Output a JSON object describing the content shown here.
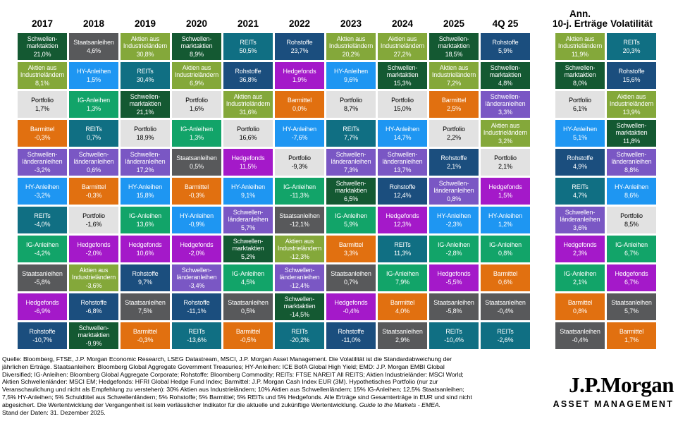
{
  "brand": {
    "name": "J.P.Morgan",
    "sub": "ASSET MANAGEMENT"
  },
  "chart_data": {
    "type": "table",
    "title": "Anlageklassenrenditen (returns quilt), ranked best-to-worst per column",
    "legend_position": "none",
    "assets": {
      "em_eq": {
        "label": "Schwellen-\nmarktaktien",
        "color": "#145932",
        "text": "#ffffff"
      },
      "dm_eq": {
        "label": "Aktien aus\nIndustrieländern",
        "color": "#84a83a",
        "text": "#ffffff"
      },
      "pf": {
        "label": "Portfolio",
        "color": "#e2e2e2",
        "text": "#000000"
      },
      "cash": {
        "label": "Barmittel",
        "color": "#e17010",
        "text": "#ffffff"
      },
      "emd": {
        "label": "Schwellen-\nländeranleihen",
        "color": "#7a57c4",
        "text": "#ffffff"
      },
      "hy": {
        "label": "HY-Anleihen",
        "color": "#1e96f2",
        "text": "#ffffff"
      },
      "reit": {
        "label": "REITs",
        "color": "#106f83",
        "text": "#ffffff"
      },
      "ig": {
        "label": "IG-Anleihen",
        "color": "#12a469",
        "text": "#ffffff"
      },
      "govt": {
        "label": "Staatsanleihen",
        "color": "#58595b",
        "text": "#ffffff"
      },
      "hf": {
        "label": "Hedgefonds",
        "color": "#a419c9",
        "text": "#ffffff"
      },
      "cmd": {
        "label": "Rohstoffe",
        "color": "#1b4e7e",
        "text": "#ffffff"
      }
    },
    "columns": [
      {
        "header": "2017",
        "cells": [
          [
            "em_eq",
            "21,0%"
          ],
          [
            "dm_eq",
            "8,1%"
          ],
          [
            "pf",
            "1,7%"
          ],
          [
            "cash",
            "-0,3%"
          ],
          [
            "emd",
            "-3,2%"
          ],
          [
            "hy",
            "-3,2%"
          ],
          [
            "reit",
            "-4,0%"
          ],
          [
            "ig",
            "-4,2%"
          ],
          [
            "govt",
            "-5,8%"
          ],
          [
            "hf",
            "-6,9%"
          ],
          [
            "cmd",
            "-10,7%"
          ]
        ]
      },
      {
        "header": "2018",
        "cells": [
          [
            "govt",
            "4,6%"
          ],
          [
            "hy",
            "1,5%"
          ],
          [
            "ig",
            "1,3%"
          ],
          [
            "reit",
            "0,7%"
          ],
          [
            "emd",
            "0,6%"
          ],
          [
            "cash",
            "-0,3%"
          ],
          [
            "pf",
            "-1,6%"
          ],
          [
            "hf",
            "-2,0%"
          ],
          [
            "dm_eq",
            "-3,6%"
          ],
          [
            "cmd",
            "-6,8%"
          ],
          [
            "em_eq",
            "-9,9%"
          ]
        ]
      },
      {
        "header": "2019",
        "cells": [
          [
            "dm_eq",
            "30,8%"
          ],
          [
            "reit",
            "30,4%"
          ],
          [
            "em_eq",
            "21,1%"
          ],
          [
            "pf",
            "18,9%"
          ],
          [
            "emd",
            "17,2%"
          ],
          [
            "hy",
            "15,8%"
          ],
          [
            "ig",
            "13,6%"
          ],
          [
            "hf",
            "10,6%"
          ],
          [
            "cmd",
            "9,7%"
          ],
          [
            "govt",
            "7,5%"
          ],
          [
            "cash",
            "-0,3%"
          ]
        ]
      },
      {
        "header": "2020",
        "cells": [
          [
            "em_eq",
            "8,9%"
          ],
          [
            "dm_eq",
            "6,9%"
          ],
          [
            "pf",
            "1,6%"
          ],
          [
            "ig",
            "1,3%"
          ],
          [
            "govt",
            "0,5%"
          ],
          [
            "cash",
            "-0,3%"
          ],
          [
            "hy",
            "-0,9%"
          ],
          [
            "hf",
            "-2,0%"
          ],
          [
            "emd",
            "-3,4%"
          ],
          [
            "cmd",
            "-11,1%"
          ],
          [
            "reit",
            "-13,6%"
          ]
        ]
      },
      {
        "header": "2021",
        "cells": [
          [
            "reit",
            "50,5%"
          ],
          [
            "cmd",
            "36,8%"
          ],
          [
            "dm_eq",
            "31,6%"
          ],
          [
            "pf",
            "16,6%"
          ],
          [
            "hf",
            "11,5%"
          ],
          [
            "hy",
            "9,1%"
          ],
          [
            "emd",
            "5,7%"
          ],
          [
            "em_eq",
            "5,2%"
          ],
          [
            "ig",
            "4,5%"
          ],
          [
            "govt",
            "0,5%"
          ],
          [
            "cash",
            "-0,5%"
          ]
        ]
      },
      {
        "header": "2022",
        "cells": [
          [
            "cmd",
            "23,7%"
          ],
          [
            "hf",
            "1,9%"
          ],
          [
            "cash",
            "0,0%"
          ],
          [
            "hy",
            "-7,6%"
          ],
          [
            "pf",
            "-9,3%"
          ],
          [
            "ig",
            "-11,3%"
          ],
          [
            "govt",
            "-12,1%"
          ],
          [
            "dm_eq",
            "-12,3%"
          ],
          [
            "emd",
            "-12,4%"
          ],
          [
            "em_eq",
            "-14,5%"
          ],
          [
            "reit",
            "-20,2%"
          ]
        ]
      },
      {
        "header": "2023",
        "cells": [
          [
            "dm_eq",
            "20,2%"
          ],
          [
            "hy",
            "9,6%"
          ],
          [
            "pf",
            "8,7%"
          ],
          [
            "reit",
            "7,7%"
          ],
          [
            "emd",
            "7,3%"
          ],
          [
            "em_eq",
            "6,5%"
          ],
          [
            "ig",
            "5,9%"
          ],
          [
            "cash",
            "3,3%"
          ],
          [
            "govt",
            "0,7%"
          ],
          [
            "hf",
            "-0,4%"
          ],
          [
            "cmd",
            "-11,0%"
          ]
        ]
      },
      {
        "header": "2024",
        "cells": [
          [
            "dm_eq",
            "27,2%"
          ],
          [
            "em_eq",
            "15,3%"
          ],
          [
            "pf",
            "15,0%"
          ],
          [
            "hy",
            "14,7%"
          ],
          [
            "emd",
            "13,7%"
          ],
          [
            "cmd",
            "12,4%"
          ],
          [
            "hf",
            "12,3%"
          ],
          [
            "reit",
            "11,3%"
          ],
          [
            "ig",
            "7,9%"
          ],
          [
            "cash",
            "4,0%"
          ],
          [
            "govt",
            "2,9%"
          ]
        ]
      },
      {
        "header": "2025",
        "cells": [
          [
            "em_eq",
            "18,5%"
          ],
          [
            "dm_eq",
            "7,2%"
          ],
          [
            "cash",
            "2,5%"
          ],
          [
            "pf",
            "2,2%"
          ],
          [
            "cmd",
            "2,1%"
          ],
          [
            "emd",
            "0,8%"
          ],
          [
            "hy",
            "-2,3%"
          ],
          [
            "ig",
            "-2,8%"
          ],
          [
            "hf",
            "-5,5%"
          ],
          [
            "govt",
            "-5,8%"
          ],
          [
            "reit",
            "-10,4%"
          ]
        ]
      },
      {
        "header": "4Q 25",
        "cells": [
          [
            "cmd",
            "5,9%"
          ],
          [
            "em_eq",
            "4,8%"
          ],
          [
            "emd",
            "3,3%"
          ],
          [
            "dm_eq",
            "3,2%"
          ],
          [
            "pf",
            "2,1%"
          ],
          [
            "hf",
            "1,5%"
          ],
          [
            "hy",
            "1,2%"
          ],
          [
            "ig",
            "0,8%"
          ],
          [
            "cash",
            "0,6%"
          ],
          [
            "govt",
            "-0,4%"
          ],
          [
            "reit",
            "-2,6%"
          ]
        ]
      },
      {
        "header": "Ann.\n10-j. Erträge",
        "gap_before": true,
        "cells": [
          [
            "dm_eq",
            "11,9%"
          ],
          [
            "em_eq",
            "8,0%"
          ],
          [
            "pf",
            "6,1%"
          ],
          [
            "hy",
            "5,1%"
          ],
          [
            "cmd",
            "4,9%"
          ],
          [
            "reit",
            "4,7%"
          ],
          [
            "emd",
            "3,6%"
          ],
          [
            "hf",
            "2,3%"
          ],
          [
            "ig",
            "2,1%"
          ],
          [
            "cash",
            "0,8%"
          ],
          [
            "govt",
            "-0,4%"
          ]
        ]
      },
      {
        "header": "Volatilität",
        "cells": [
          [
            "reit",
            "20,3%"
          ],
          [
            "cmd",
            "15,6%"
          ],
          [
            "dm_eq",
            "13,9%"
          ],
          [
            "em_eq",
            "11,8%"
          ],
          [
            "emd",
            "8,8%"
          ],
          [
            "hy",
            "8,6%"
          ],
          [
            "pf",
            "8,5%"
          ],
          [
            "ig",
            "6,7%"
          ],
          [
            "hf",
            "6,7%"
          ],
          [
            "govt",
            "5,7%"
          ],
          [
            "cash",
            "1,7%"
          ]
        ]
      }
    ]
  },
  "footer": {
    "lines": [
      [
        {
          "text": "Quelle: Bloomberg, FTSE, J.P. Morgan Economic Research, LSEG Datastream, MSCI, J.P. Morgan Asset Management. Die Volatilität ist die Standardabweichung der"
        }
      ],
      [
        {
          "text": "jährlichen Erträge. Staatsanleihen: Bloomberg Global Aggregate Government Treasuries; HY-Anleihen: ICE BofA Global High Yield; EMD: J.P. Morgan EMBI Global"
        }
      ],
      [
        {
          "text": "Diversified; IG-Anleihen: Bloomberg Global Aggregate Corporate; Rohstoffe: Bloomberg Commodity; REITs: FTSE NAREIT All REITS; Aktien Industrieländer: MSCI World;"
        }
      ],
      [
        {
          "text": "Aktien Schwellenländer: MSCI EM; Hedgefonds: HFRI Global Hedge Fund Index; Barmittel: J.P. Morgan Cash Index EUR (3M). Hypothetisches Portfolio (nur zur"
        }
      ],
      [
        {
          "text": "Veranschaulichung und nicht als Empfehlung zu verstehen): 30% Aktien aus Industrieländern; 10% Aktien aus Schwellenländern; 15% IG-Anleihen; 12,5% Staatsanleihen;"
        }
      ],
      [
        {
          "text": "7,5% HY-Anleihen; 5% Schuldtitel aus Schwellenländern; 5% Rohstoffe; 5% Barmittel; 5% REITs und 5% Hedgefonds. Alle Erträge sind Gesamterträge in EUR und sind nicht"
        }
      ],
      [
        {
          "text": "abgesichert. Die Wertentwicklung der Vergangenheit ist kein verlässlicher Indikator für die aktuelle und zukünftige Wertentwicklung. "
        },
        {
          "text": "Guide to the Markets - EMEA.",
          "italic": true
        }
      ],
      [
        {
          "text": "Stand der Daten: 31. Dezember 2025."
        }
      ]
    ]
  }
}
